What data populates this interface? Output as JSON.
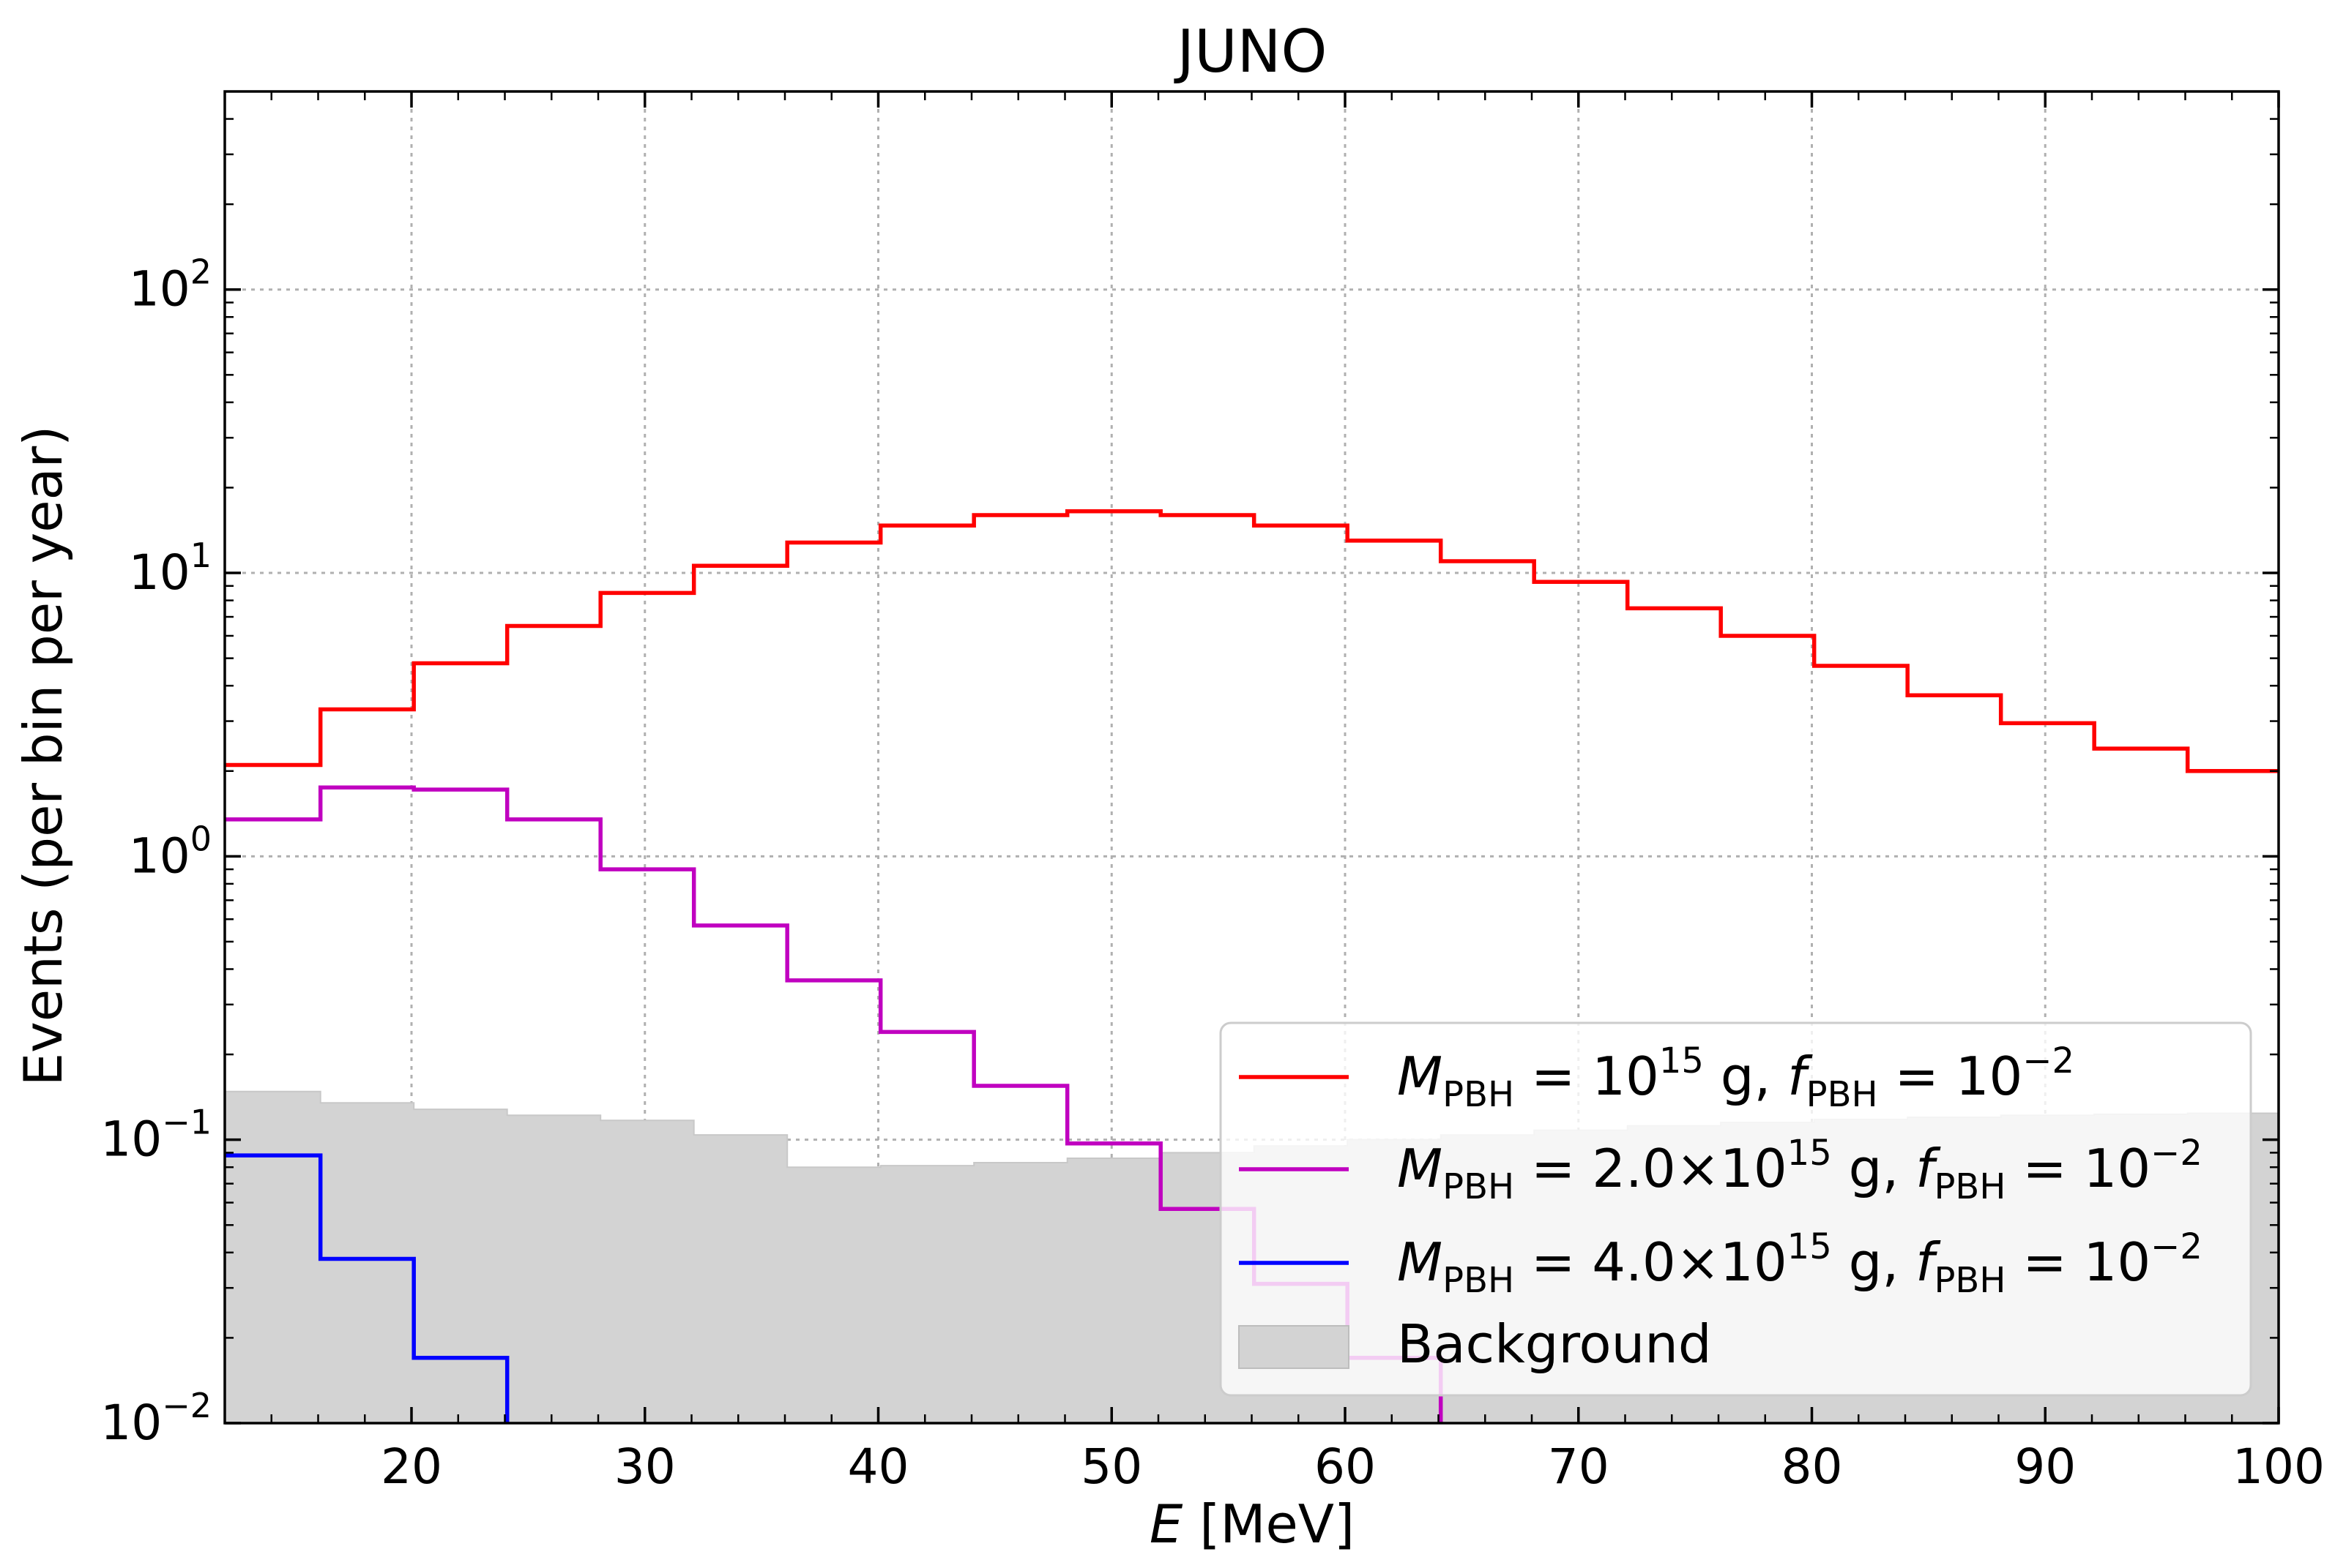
{
  "chart_data": {
    "type": "line",
    "title": "JUNO",
    "xlabel_var": "E",
    "xlabel_unit": "[MeV]",
    "ylabel": "Events (per bin per year)",
    "xlim": [
      12,
      100
    ],
    "ylim": [
      0.01,
      500
    ],
    "yscale": "log",
    "grid": true,
    "legend_position": "center-right",
    "x_ticks": [
      "20",
      "30",
      "40",
      "50",
      "60",
      "70",
      "80",
      "90",
      "100"
    ],
    "y_ticks": [
      {
        "base": "10",
        "exp": "2",
        "value": 100
      },
      {
        "base": "10",
        "exp": "1",
        "value": 10
      },
      {
        "base": "10",
        "exp": "0",
        "value": 1
      },
      {
        "base": "10",
        "exp": "−1",
        "value": 0.1
      },
      {
        "base": "10",
        "exp": "−2",
        "value": 0.01
      }
    ],
    "bin_edges": [
      12,
      16.1,
      20.1,
      24.1,
      28.1,
      32.1,
      36.1,
      40.1,
      44.1,
      48.1,
      52.1,
      56.1,
      60.1,
      64.1,
      68.1,
      72.1,
      76.1,
      80.1,
      84.1,
      88.1,
      92.1,
      96.1,
      100
    ],
    "series": [
      {
        "name": "M_PBH = 10^15 g, f_PBH = 10^-2",
        "color": "#ff0000",
        "values": [
          2.1,
          3.3,
          4.8,
          6.5,
          8.5,
          10.6,
          12.8,
          14.7,
          16.0,
          16.5,
          16.0,
          14.7,
          13.0,
          11.0,
          9.3,
          7.5,
          6.0,
          4.7,
          3.7,
          2.95,
          2.4,
          2.0
        ]
      },
      {
        "name": "M_PBH = 2.0×10^15 g, f_PBH = 10^-2",
        "color": "#c000c0",
        "values": [
          1.35,
          1.75,
          1.72,
          1.35,
          0.9,
          0.57,
          0.365,
          0.24,
          0.155,
          0.097,
          0.057,
          0.031,
          0.017,
          0.009
        ]
      },
      {
        "name": "M_PBH = 4.0×10^15 g, f_PBH = 10^-2",
        "color": "#0000ff",
        "values": [
          0.088,
          0.038,
          0.017,
          0.0095
        ]
      },
      {
        "name": "Background",
        "color": "#d3d3d3",
        "fill": true,
        "values": [
          0.148,
          0.135,
          0.128,
          0.122,
          0.117,
          0.104,
          0.08,
          0.081,
          0.083,
          0.086,
          0.09,
          0.095,
          0.1,
          0.104,
          0.108,
          0.112,
          0.115,
          0.118,
          0.12,
          0.122,
          0.123,
          0.124
        ]
      }
    ],
    "legend": [
      {
        "key": "red",
        "color": "#ff0000",
        "mass_prefix": "",
        "mass_exp": "15",
        "f_exp": "−2"
      },
      {
        "key": "magenta",
        "color": "#c000c0",
        "mass_prefix": "2.0×",
        "mass_exp": "15",
        "f_exp": "−2"
      },
      {
        "key": "blue",
        "color": "#0000ff",
        "mass_prefix": "4.0×",
        "mass_exp": "15",
        "f_exp": "−2"
      },
      {
        "key": "background",
        "color": "#d3d3d3",
        "label": "Background"
      }
    ],
    "legend_text": {
      "M": "M",
      "PBH": "PBH",
      "eq": " = ",
      "ten": "10",
      "g": " g, ",
      "f": "f"
    }
  }
}
